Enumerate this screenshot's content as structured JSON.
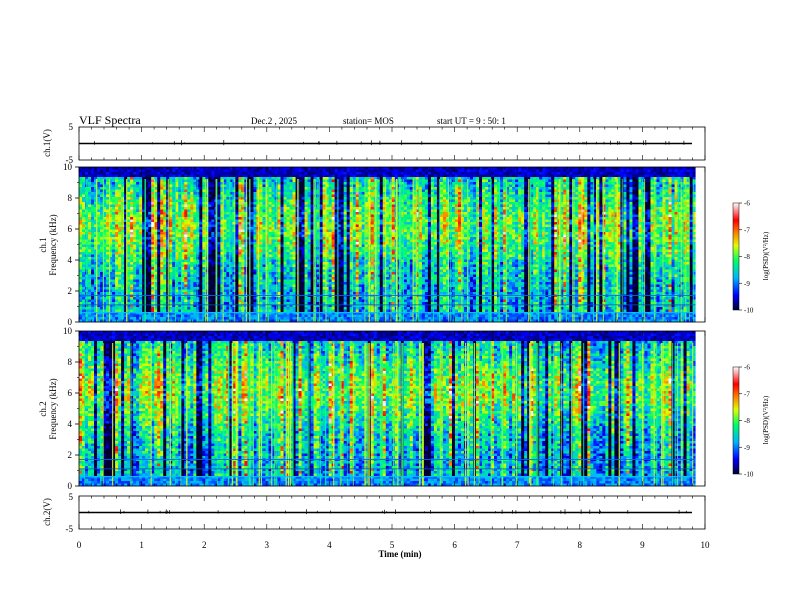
{
  "header": {
    "title": "VLF Spectra",
    "date": "Dec.2 , 2025",
    "station": "station= MOS",
    "start": "start UT =  9 : 50: 1"
  },
  "chart_data": [
    {
      "type": "line",
      "panel": "ch1-waveform",
      "ylabel": "ch.1(V)",
      "ylim": [
        -5,
        5
      ],
      "yticks": [
        "5",
        "-5"
      ],
      "xlim": [
        0,
        10
      ],
      "baseline": 0
    },
    {
      "type": "heatmap",
      "panel": "ch1-spectrogram",
      "ylabel": "ch.1\nFrequency (kHz)",
      "ylabel_lines": [
        "ch.1",
        "Frequency (kHz)"
      ],
      "ylim": [
        0,
        10
      ],
      "yticks": [
        "0",
        "2",
        "4",
        "6",
        "8",
        "10"
      ],
      "xlim": [
        0,
        9.85
      ],
      "colorbar": {
        "label": "log(PSD)(V²/Hz)",
        "range": [
          -10,
          -6
        ],
        "ticks": [
          "-6",
          "-7",
          "-8",
          "-9",
          "-10"
        ]
      }
    },
    {
      "type": "heatmap",
      "panel": "ch2-spectrogram",
      "ylabel": "ch.2\nFrequency (kHz)",
      "ylabel_lines": [
        "ch.2",
        "Frequency (kHz)"
      ],
      "ylim": [
        0,
        10
      ],
      "yticks": [
        "0",
        "2",
        "4",
        "6",
        "8",
        "10"
      ],
      "xlim": [
        0,
        9.85
      ],
      "colorbar": {
        "label": "log(PSD)(V²/Hz)",
        "range": [
          -10,
          -6
        ],
        "ticks": [
          "-6",
          "-7",
          "-8",
          "-9",
          "-10"
        ]
      }
    },
    {
      "type": "line",
      "panel": "ch2-waveform",
      "ylabel": "ch.2(V)",
      "ylim": [
        -5,
        5
      ],
      "yticks": [
        "5",
        "-5"
      ],
      "xlim": [
        0,
        10
      ],
      "baseline": 0
    }
  ],
  "xaxis": {
    "label": "Time (min)",
    "range": [
      0,
      10
    ],
    "ticks": [
      "0",
      "1",
      "2",
      "3",
      "4",
      "5",
      "6",
      "7",
      "8",
      "9",
      "10"
    ]
  },
  "colors": {
    "spectrum": [
      "#000030",
      "#0000ff",
      "#00b4ff",
      "#00ff64",
      "#dcff00",
      "#ff8000",
      "#ff0000",
      "#ffffff"
    ],
    "line": "#000000"
  }
}
